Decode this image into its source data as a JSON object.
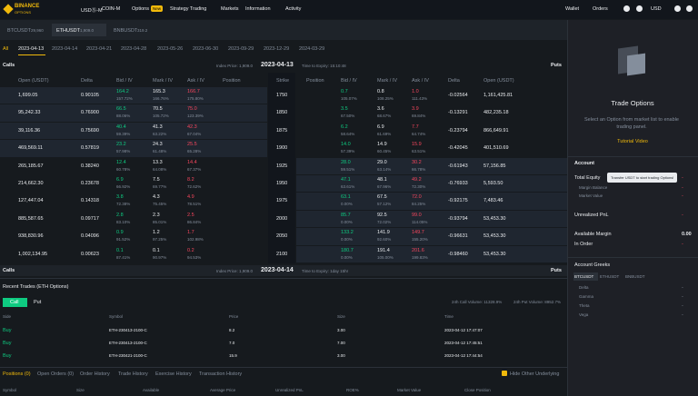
{
  "nav": {
    "logo": "BINANCE",
    "logo_sub": "OPTIONS",
    "menu": [
      "USDⓈ-M",
      "COIN-M",
      "Options",
      "Strategy Trading",
      "Markets",
      "Information",
      "Activity"
    ],
    "badge": "New",
    "right": [
      "Wallet",
      "Orders",
      "USD"
    ]
  },
  "underlyings": [
    {
      "symbol": "BTCUSDT",
      "price": "29,960"
    },
    {
      "symbol": "ETHUSDT",
      "price": "1,909.0"
    },
    {
      "symbol": "BNBUSDT",
      "price": "319.2"
    }
  ],
  "expiries": [
    "All",
    "2023-04-13",
    "2023-04-14",
    "2023-04-21",
    "2023-04-28",
    "2023-05-26",
    "2023-06-30",
    "2023-09-29",
    "2023-12-29",
    "2024-03-29"
  ],
  "chain_header": {
    "left": "Calls",
    "index": "Index Price: 1,909.0",
    "date": "2023-04-13",
    "expiry": "Time to Expiry: 15:10:48",
    "right": "Puts"
  },
  "columns": [
    "Open (USDT)",
    "Delta",
    "Bid / IV",
    "Mark / IV",
    "Ask / IV",
    "Position",
    "Strike",
    "Position",
    "Bid / IV",
    "Mark / IV",
    "Ask / IV",
    "Delta",
    "Open (USDT)"
  ],
  "rows": [
    {
      "call": [
        "1,699.05",
        "0.90105",
        "164.2",
        "157.72%",
        "165.3",
        "166.76%",
        "166.7",
        "175.80%"
      ],
      "strike": "1750",
      "put": [
        "0.7",
        "105.07%",
        "0.8",
        "108.25%",
        "1.0",
        "111.43%",
        "-0.02564",
        "1,161,425.81"
      ]
    },
    {
      "call": [
        "95,242.33",
        "0.76900",
        "66.5",
        "88.06%",
        "70.5",
        "105.72%",
        "75.0",
        "123.39%"
      ],
      "strike": "1850",
      "put": [
        "3.5",
        "67.50%",
        "3.6",
        "68.67%",
        "3.9",
        "69.84%",
        "-0.13291",
        "482,235.18"
      ]
    },
    {
      "call": [
        "39,116.36",
        "0.75690",
        "40.4",
        "59.39%",
        "41.3",
        "63.22%",
        "42.3",
        "67.04%"
      ],
      "strike": "1875",
      "put": [
        "6.2",
        "58.64%",
        "6.9",
        "61.69%",
        "7.7",
        "64.74%",
        "-0.23794",
        "866,649.91"
      ]
    },
    {
      "call": [
        "469,569.11",
        "0.57819",
        "23.2",
        "57.98%",
        "24.3",
        "61.48%",
        "25.5",
        "65.28%"
      ],
      "strike": "1900",
      "put": [
        "14.0",
        "57.39%",
        "14.9",
        "60.45%",
        "15.9",
        "63.51%",
        "-0.42045",
        "401,510.69"
      ]
    },
    {
      "call": [
        "265,185.67",
        "0.38240",
        "12.4",
        "60.78%",
        "13.3",
        "64.08%",
        "14.4",
        "67.37%"
      ],
      "strike": "1925",
      "put": [
        "28.0",
        "59.51%",
        "29.0",
        "63.14%",
        "30.2",
        "66.78%",
        "-0.61943",
        "57,156.85"
      ]
    },
    {
      "call": [
        "214,662.30",
        "0.23678",
        "6.9",
        "66.92%",
        "7.5",
        "69.77%",
        "8.2",
        "72.62%"
      ],
      "strike": "1950",
      "put": [
        "47.1",
        "63.61%",
        "48.1",
        "67.96%",
        "49.2",
        "72.30%",
        "-0.76933",
        "5,593.50"
      ]
    },
    {
      "call": [
        "127,447.04",
        "0.14318",
        "3.8",
        "72.38%",
        "4.3",
        "75.45%",
        "4.9",
        "78.51%"
      ],
      "strike": "1975",
      "put": [
        "63.1",
        "0.00%",
        "67.5",
        "57.12%",
        "72.0",
        "84.25%",
        "-0.92175",
        "7,483.46"
      ]
    },
    {
      "call": [
        "885,587.65",
        "0.09717",
        "2.8",
        "83.10%",
        "2.3",
        "85.01%",
        "2.5",
        "86.84%"
      ],
      "strike": "2000",
      "put": [
        "85.7",
        "0.00%",
        "92.5",
        "72.02%",
        "99.0",
        "114.05%",
        "-0.93794",
        "53,453.30"
      ]
    },
    {
      "call": [
        "938,830.96",
        "0.04096",
        "0.9",
        "91.52%",
        "1.2",
        "97.25%",
        "1.7",
        "102.98%"
      ],
      "strike": "2050",
      "put": [
        "133.2",
        "0.00%",
        "141.9",
        "92.60%",
        "149.7",
        "155.20%",
        "-0.96631",
        "53,453.30"
      ]
    },
    {
      "call": [
        "1,002,134.95",
        "0.00623",
        "0.1",
        "87.41%",
        "0.1",
        "90.97%",
        "0.2",
        "94.53%"
      ],
      "strike": "2100",
      "put": [
        "180.7",
        "0.00%",
        "191.4",
        "105.00%",
        "201.6",
        "199.83%",
        "-0.98460",
        "53,453.30"
      ]
    }
  ],
  "chain_header2": {
    "left": "Calls",
    "index": "Index Price: 1,909.0",
    "date": "2023-04-14",
    "expiry": "Time to Expiry: 1day 15hr",
    "right": "Puts"
  },
  "recent_trades": {
    "title": "Recent Trades (ETH Options)",
    "toggles": [
      "Call",
      "Put"
    ],
    "call_volume": "24h Call Volume: 11328.9%",
    "put_volume": "24h Put Volume: 8952.7%",
    "columns": [
      "Side",
      "Symbol",
      "Price",
      "Size",
      "Time"
    ],
    "rows": [
      [
        "Buy",
        "ETH-230413-2100-C",
        "8.2",
        "3.00",
        "2023-04-12 17:47:07"
      ],
      [
        "Buy",
        "ETH-230413-2100-C",
        "7.0",
        "7.00",
        "2023-04-12 17:45:51"
      ],
      [
        "Buy",
        "ETH-230421-2100-C",
        "15.9",
        "3.00",
        "2023-04-12 17:44:54"
      ]
    ]
  },
  "positions": {
    "tabs": [
      "Positions (0)",
      "Open Orders (0)",
      "Order History",
      "Trade History",
      "Exercise History",
      "Transaction History"
    ],
    "hide_other": "Hide Other Underlying",
    "columns": [
      "Symbol",
      "Size",
      "Available",
      "Average Price",
      "Unrealized PnL",
      "ROE%",
      "Market Value",
      "Close Position"
    ]
  },
  "side_panel": {
    "title": "Trade Options",
    "message": "Select an Option from market list to enable trading panel.",
    "link": "Tutorial Video",
    "account": "Account",
    "tooltip": "Transfer USDT to start trading Options!",
    "items": [
      {
        "label": "Total Equity",
        "value": "-"
      },
      {
        "label": "Margin Balance",
        "value": "-"
      },
      {
        "label": "Market Value",
        "value": "-"
      },
      {
        "label": "Unrealized PnL",
        "value": "-"
      },
      {
        "label": "Available Margin",
        "value": "0.00"
      },
      {
        "label": "In Order",
        "value": "-"
      }
    ],
    "greeks_title": "Account Greeks",
    "greeks_tabs": [
      "BTCUSDT",
      "ETHUSDT",
      "BNBUSDT"
    ],
    "greeks": [
      {
        "label": "Delta",
        "value": "-"
      },
      {
        "label": "Gamma",
        "value": "-"
      },
      {
        "label": "Theta",
        "value": "-"
      },
      {
        "label": "Vega",
        "value": "-"
      }
    ]
  }
}
